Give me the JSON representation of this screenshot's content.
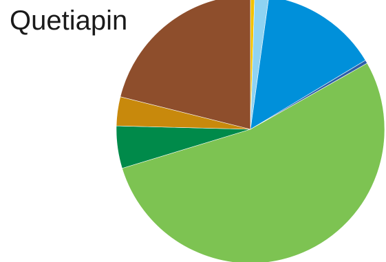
{
  "chart_data": {
    "type": "pie",
    "title": "Quetiapin",
    "start_angle_deg": 0,
    "direction": "clockwise",
    "legend": "none",
    "slices": [
      {
        "value": 0.5,
        "color": "#F2C200"
      },
      {
        "value": 1.7,
        "color": "#8FD3F2"
      },
      {
        "value": 14.2,
        "color": "#0090DA"
      },
      {
        "value": 0.4,
        "color": "#2E5FA8"
      },
      {
        "value": 53.5,
        "color": "#7DC352"
      },
      {
        "value": 5.1,
        "color": "#008A4A"
      },
      {
        "value": 3.5,
        "color": "#C8890C"
      },
      {
        "value": 21.1,
        "color": "#8E4E2C"
      }
    ]
  }
}
